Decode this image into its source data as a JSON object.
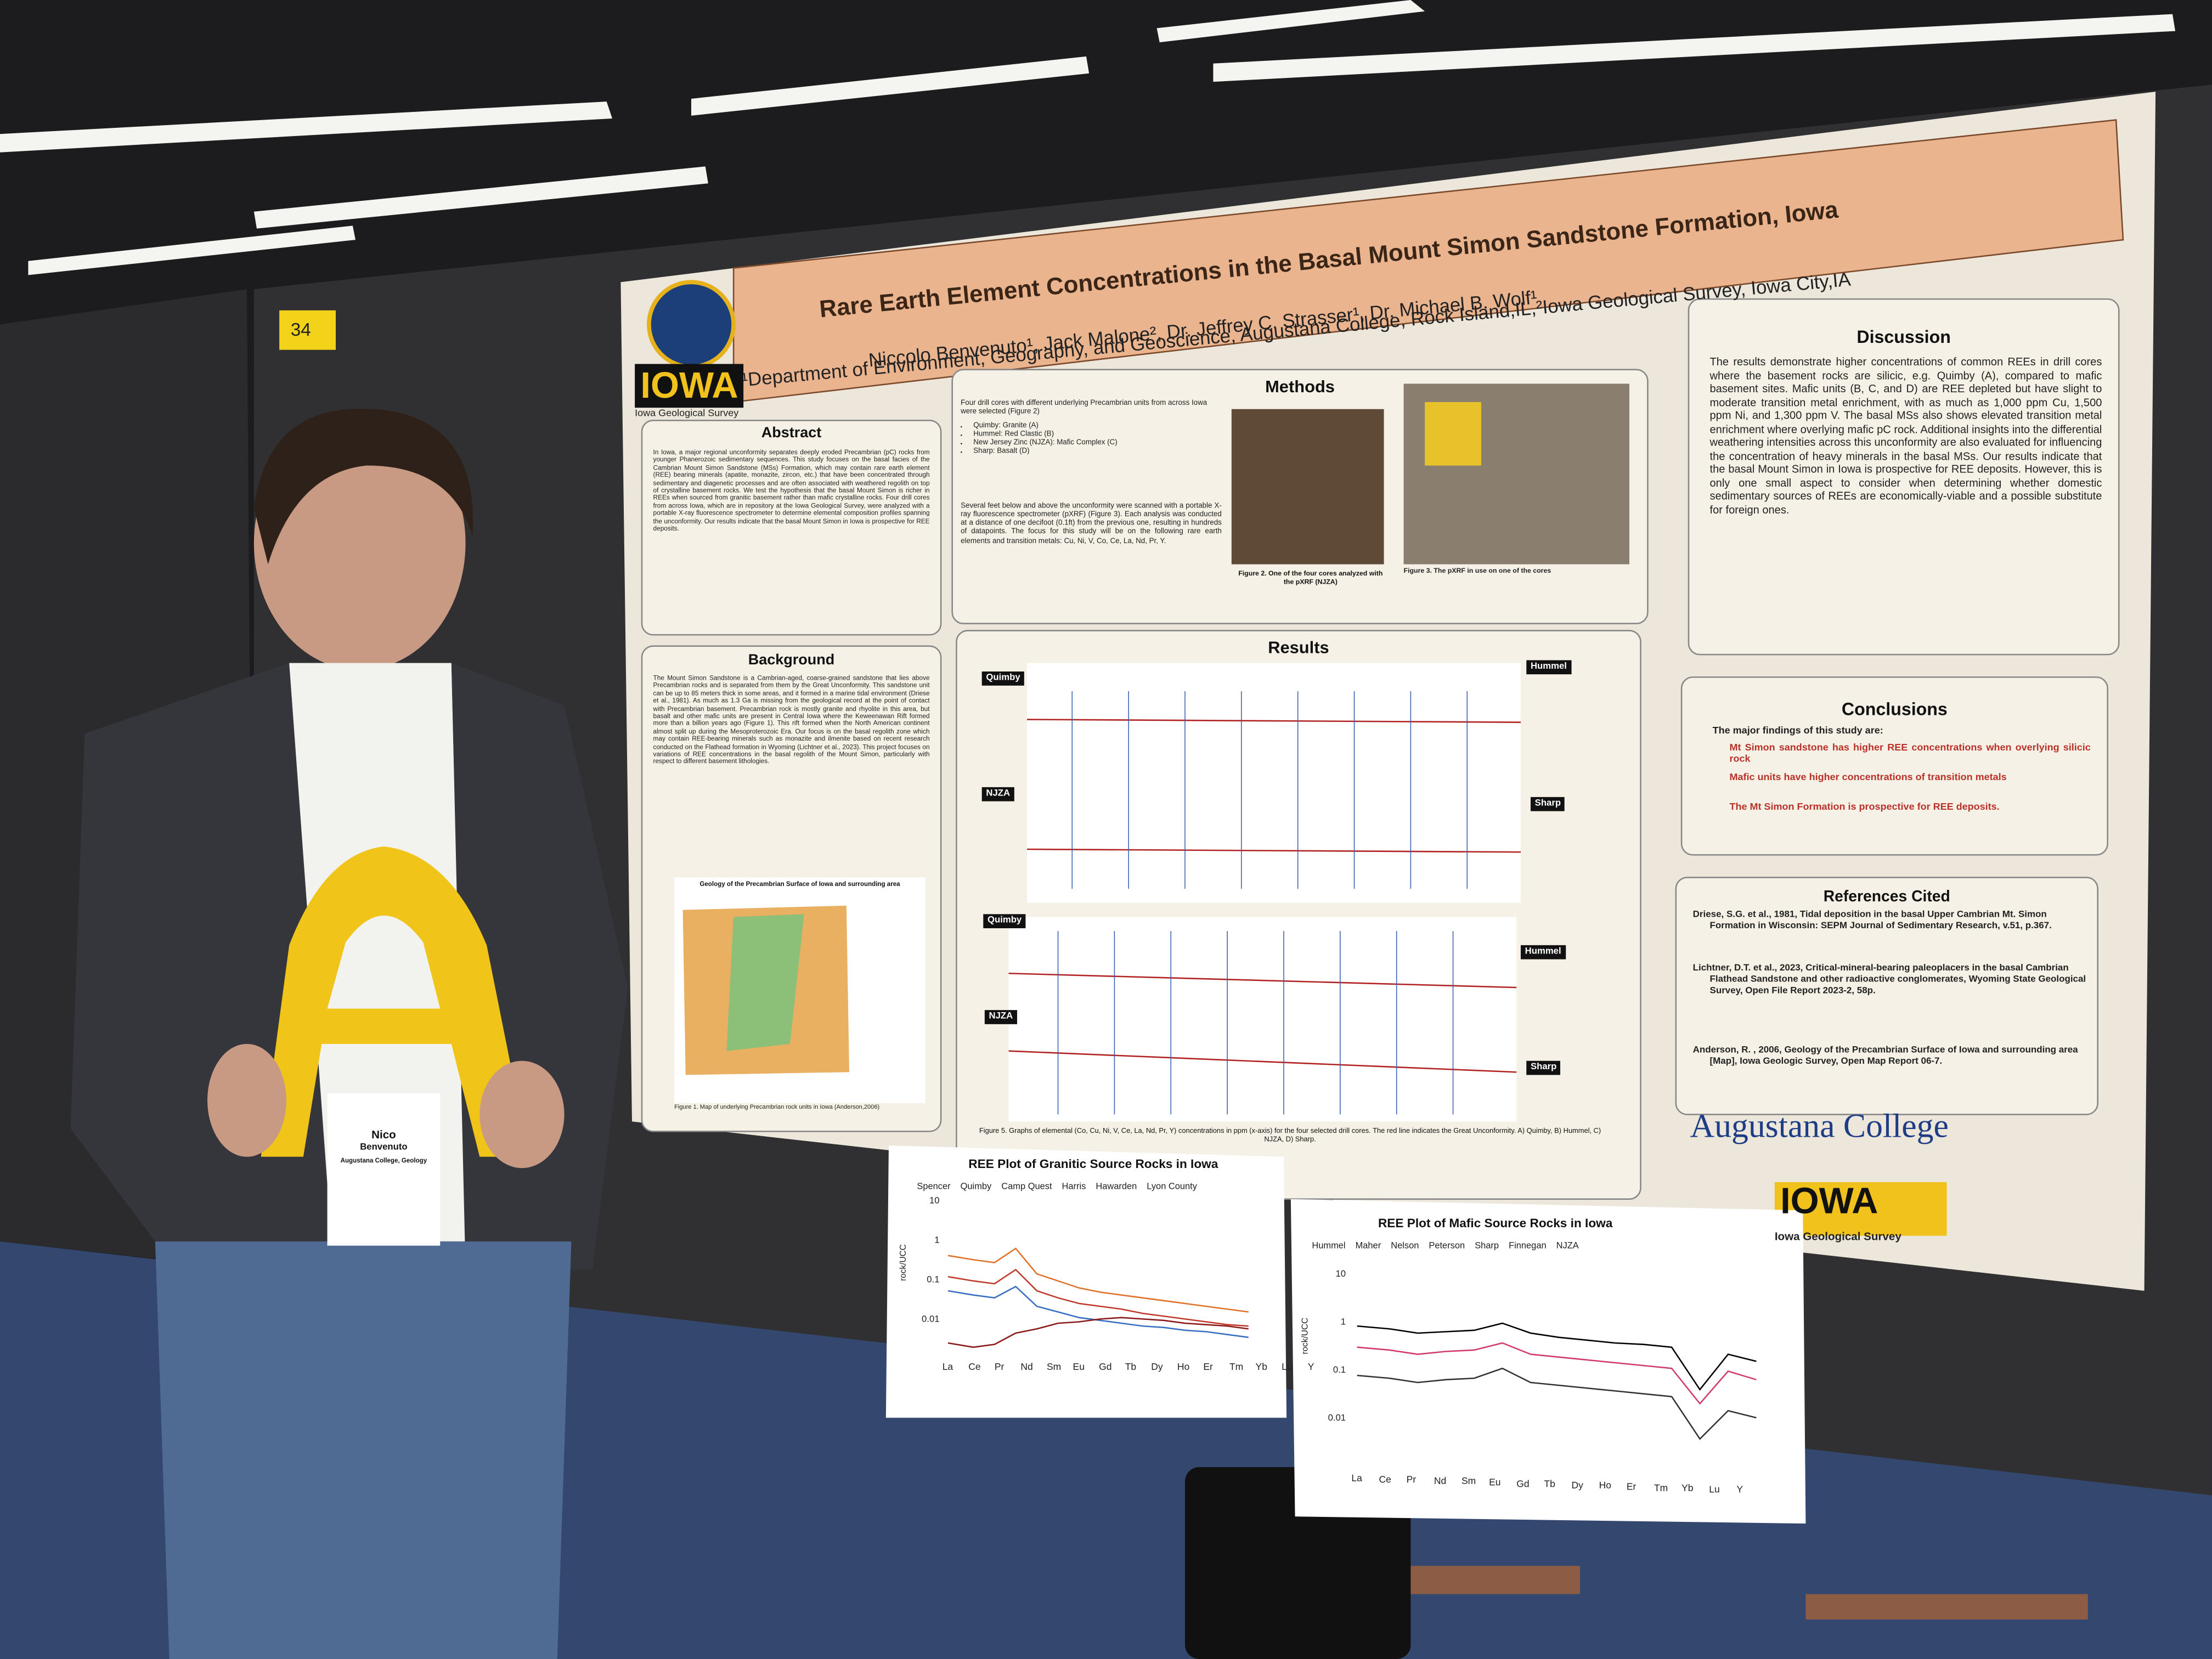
{
  "booth_number": "34",
  "badge": {
    "first_name": "Nico",
    "last_name": "Benvenuto",
    "affiliation": "Augustana College, Geology"
  },
  "poster": {
    "title": "Rare Earth Element Concentrations in the Basal Mount Simon Sandstone Formation, Iowa",
    "authors": "Niccolo Benvenuto¹, Jack Malone², Dr. Jeffrey C. Strasser¹, Dr. Michael B. Wolf¹",
    "affiliations": "¹Department of Environment, Geography, and Geoscience, Augustana College, Rock Island,IL,²Iowa Geological Survey, Iowa City,IA",
    "logo": {
      "word": "IOWA",
      "subtitle": "Iowa Geological Survey"
    },
    "abstract": {
      "heading": "Abstract",
      "text": "In Iowa, a major regional unconformity separates deeply eroded Precambrian (pC) rocks from younger Phanerozoic sedimentary sequences. This study focuses on the basal facies of the Cambrian Mount Simon Sandstone (MSs) Formation, which may contain rare earth element (REE) bearing minerals (apatite, monazite, zircon, etc.) that have been concentrated through sedimentary and diagenetic processes and are often associated with weathered regolith on top of crystalline basement rocks. We test the hypothesis that the basal Mount Simon is richer in REEs when sourced from granitic basement rather than mafic crystalline rocks. Four drill cores from across Iowa, which are in repository at the Iowa Geological Survey, were analyzed with a portable X-ray fluorescence spectrometer to determine elemental composition profiles spanning the unconformity. Our results indicate that the basal Mount Simon in Iowa is prospective for REE deposits."
    },
    "background": {
      "heading": "Background",
      "text": "The Mount Simon Sandstone is a Cambrian-aged, coarse-grained sandstone that lies above Precambrian rocks and is separated from them by the Great Unconformity. This sandstone unit can be up to 85 meters thick in some areas, and it formed in a marine tidal environment (Driese et al., 1981). As much as 1.3 Ga is missing from the geological record at the point of contact with Precambrian basement. Precambrian rock is mostly granite and rhyolite in this area, but basalt and other mafic units are present in Central Iowa where the Keweenawan Rift formed more than a billion years ago (Figure 1). This rift formed when the North American continent almost split up during the Mesoproterozoic Era. Our focus is on the basal regolith zone which may contain REE-bearing minerals such as monazite and ilmenite based on recent research conducted on the Flathead formation in Wyoming (Lichtner et al., 2023). This project focuses on variations of REE concentrations in the basal regolith of the Mount Simon, particularly with respect to different basement lithologies.",
      "map_title": "Geology of the Precambrian Surface of Iowa and surrounding area",
      "figure_caption": "Figure 1. Map of underlying Precambrian rock units in Iowa (Anderson,2006)"
    },
    "methods": {
      "heading": "Methods",
      "intro": "Four drill cores with different underlying Precambrian units from across Iowa were selected (Figure 2)",
      "cores": [
        "Quimby: Granite (A)",
        "Hummel: Red Clastic (B)",
        "New Jersey Zinc (NJZA): Mafic Complex (C)",
        "Sharp: Basalt (D)"
      ],
      "text": "Several feet below and above the unconformity were scanned with a portable X-ray fluorescence spectrometer (pXRF) (Figure 3). Each analysis was conducted at a distance of one decifoot (0.1ft) from the previous one, resulting in hundreds of datapoints. The focus for this study will be on the following rare earth elements and transition metals: Cu, Ni, V, Co, Ce, La, Nd, Pr, Y.",
      "figure2_caption": "Figure 2. One of the four cores analyzed with the pXRF (NJZA)",
      "figure3_caption": "Figure 3. The pXRF in use on one of the cores"
    },
    "results": {
      "heading": "Results",
      "panel_labels": [
        "Quimby",
        "Hummel",
        "NJZA",
        "Sharp",
        "Quimby",
        "Hummel",
        "NJZA",
        "Sharp"
      ],
      "figure_caption": "Figure 5. Graphs of elemental (Co, Cu, Ni, V, Ce, La, Nd, Pr, Y) concentrations in ppm (x-axis) for the four selected drill cores. The red line indicates the Great Unconformity. A) Quimby, B) Hummel, C) NJZA, D) Sharp."
    },
    "discussion": {
      "heading": "Discussion",
      "text": "The results demonstrate higher concentrations of common REEs in drill cores where the basement rocks are silicic, e.g. Quimby (A), compared to mafic basement sites. Mafic units (B, C, and D) are REE depleted but have slight to moderate transition metal enrichment, with as much as 1,000 ppm Cu, 1,500 ppm Ni, and 1,300 ppm V. The basal MSs also shows elevated transition metal enrichment where overlying mafic pC rock. Additional insights into the differential weathering intensities across this unconformity are also evaluated for influencing the concentration of heavy minerals in the basal MSs. Our results indicate that the basal Mount Simon in Iowa is prospective for REE deposits. However, this is only one small aspect to consider when determining whether domestic sedimentary sources of REEs are economically-viable and a possible substitute for foreign ones."
    },
    "conclusions": {
      "heading": "Conclusions",
      "intro": "The major findings of this study are:",
      "items": [
        "Mt Simon sandstone has higher REE concentrations when overlying silicic rock",
        "Mafic units have higher concentrations of transition metals",
        "The Mt Simon Formation is prospective for REE deposits."
      ]
    },
    "references": {
      "heading": "References Cited",
      "items": [
        "Driese, S.G. et al., 1981, Tidal deposition in the basal Upper Cambrian Mt. Simon Formation in Wisconsin: SEPM Journal of Sedimentary Research, v.51, p.367.",
        "Lichtner, D.T. et al., 2023, Critical-mineral-bearing paleoplacers in the basal Cambrian Flathead Sandstone and other radioactive conglomerates, Wyoming State Geological Survey, Open File Report 2023-2, 58p.",
        "Anderson, R. , 2006, Geology of the Precambrian Surface of Iowa and surrounding area [Map], Iowa Geologic Survey, Open Map Report 06-7."
      ]
    },
    "footer_logos": {
      "college": "Augustana College",
      "iowa": "IOWA",
      "survey": "Iowa Geological Survey"
    }
  },
  "ree_plots": [
    {
      "title": "REE Plot of Granitic Source Rocks in Iowa",
      "y_label": "rock/UCC",
      "legend": [
        "Spencer",
        "Quimby",
        "Camp Quest",
        "Harris",
        "Hawarden",
        "Lyon County"
      ],
      "y_tick_labels": [
        "10",
        "1",
        "0.1",
        "0.01"
      ],
      "elements": [
        "La",
        "Ce",
        "Pr",
        "Nd",
        "Sm",
        "Eu",
        "Gd",
        "Tb",
        "Dy",
        "Ho",
        "Er",
        "Tm",
        "Yb",
        "Lu",
        "Y"
      ]
    },
    {
      "title": "REE Plot of Mafic Source Rocks in Iowa",
      "y_label": "rock/UCC",
      "legend": [
        "Hummel",
        "Maher",
        "Nelson",
        "Peterson",
        "Sharp",
        "Finnegan",
        "NJZA"
      ],
      "y_tick_labels": [
        "10",
        "1",
        "0.1",
        "0.01"
      ],
      "elements": [
        "La",
        "Ce",
        "Pr",
        "Nd",
        "Sm",
        "Eu",
        "Gd",
        "Tb",
        "Dy",
        "Ho",
        "Er",
        "Tm",
        "Yb",
        "Lu",
        "Y"
      ]
    }
  ]
}
